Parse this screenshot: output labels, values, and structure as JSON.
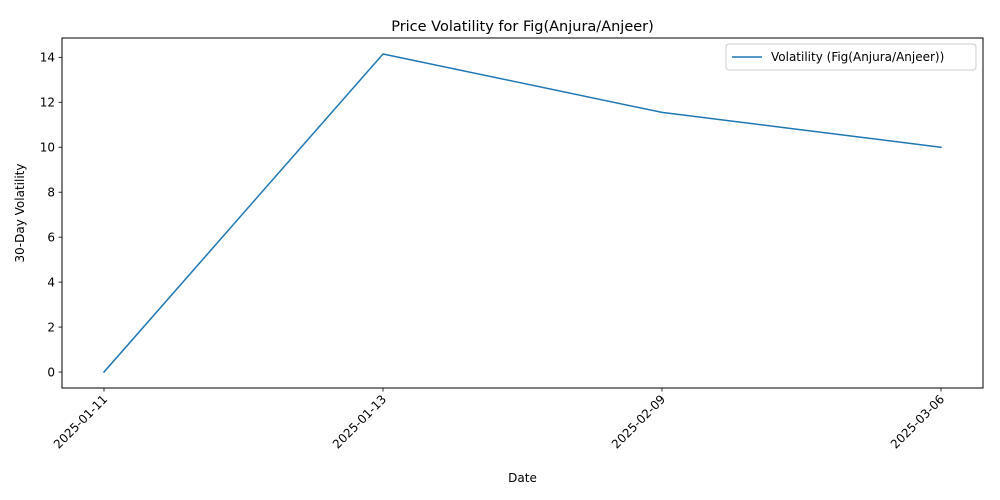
{
  "chart_data": {
    "type": "line",
    "title": "Price Volatility for Fig(Anjura/Anjeer)",
    "xlabel": "Date",
    "ylabel": "30-Day Volatility",
    "x": [
      "2025-01-11",
      "2025-01-13",
      "2025-02-09",
      "2025-03-06"
    ],
    "series": [
      {
        "name": "Volatility (Fig(Anjura/Anjeer))",
        "color": "#1f77b4",
        "values": [
          0,
          14.15,
          11.55,
          10.0
        ]
      }
    ],
    "yticks": [
      0,
      2,
      4,
      6,
      8,
      10,
      12,
      14
    ],
    "ylim": [
      -0.71,
      14.86
    ],
    "x_tick_rotation": 45,
    "legend_position": "upper right",
    "grid": false
  }
}
